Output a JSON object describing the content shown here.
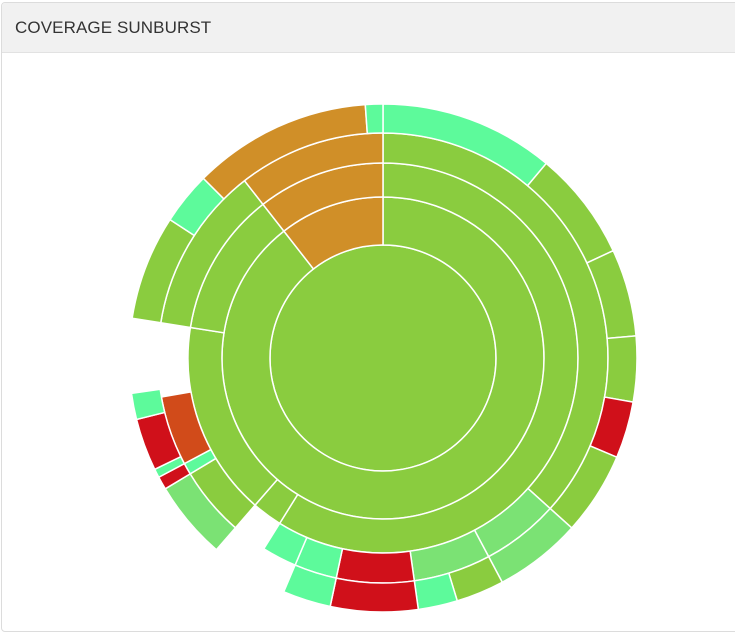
{
  "panel": {
    "title": "COVERAGE SUNBURST"
  },
  "chart_data": {
    "type": "sunburst",
    "color_scale": {
      "high": "#8acc3f",
      "very_high": "#5dfa9b",
      "good": "#7be274",
      "medium": "#d08f28",
      "low": "#d14b1a",
      "very_low": "#d0101a"
    },
    "segments": [
      {
        "level": 0,
        "start_deg": 0,
        "end_deg": 360,
        "color": "high"
      },
      {
        "level": 1,
        "start_deg": 0,
        "end_deg": 322,
        "color": "high"
      },
      {
        "level": 1,
        "start_deg": 322,
        "end_deg": 360,
        "color": "medium"
      },
      {
        "level": 2,
        "start_deg": 0,
        "end_deg": 212,
        "color": "high"
      },
      {
        "level": 2,
        "start_deg": 212,
        "end_deg": 221,
        "color": "high"
      },
      {
        "level": 2,
        "start_deg": 221,
        "end_deg": 279,
        "color": "high"
      },
      {
        "level": 2,
        "start_deg": 279,
        "end_deg": 322,
        "color": "high"
      },
      {
        "level": 2,
        "start_deg": 322,
        "end_deg": 360,
        "color": "medium"
      },
      {
        "level": 3,
        "start_deg": 0,
        "end_deg": 132,
        "color": "high"
      },
      {
        "level": 3,
        "start_deg": 132,
        "end_deg": 152,
        "color": "good"
      },
      {
        "level": 3,
        "start_deg": 152,
        "end_deg": 172,
        "color": "good"
      },
      {
        "level": 3,
        "start_deg": 172,
        "end_deg": 192,
        "color": "very_low"
      },
      {
        "level": 3,
        "start_deg": 192,
        "end_deg": 203,
        "color": "very_high"
      },
      {
        "level": 3,
        "start_deg": 203,
        "end_deg": 212,
        "color": "very_high"
      },
      {
        "level": 3,
        "start_deg": 221,
        "end_deg": 239,
        "color": "high"
      },
      {
        "level": 3,
        "start_deg": 239,
        "end_deg": 242,
        "color": "very_high"
      },
      {
        "level": 3,
        "start_deg": 242,
        "end_deg": 260,
        "color": "low"
      },
      {
        "level": 3,
        "start_deg": 279,
        "end_deg": 322,
        "color": "high"
      },
      {
        "level": 3,
        "start_deg": 322,
        "end_deg": 360,
        "color": "medium"
      },
      {
        "level": 4,
        "start_deg": 0,
        "end_deg": 40,
        "color": "very_high"
      },
      {
        "level": 4,
        "start_deg": 40,
        "end_deg": 65,
        "color": "high"
      },
      {
        "level": 4,
        "start_deg": 65,
        "end_deg": 85,
        "color": "high"
      },
      {
        "level": 4,
        "start_deg": 85,
        "end_deg": 100,
        "color": "high"
      },
      {
        "level": 4,
        "start_deg": 100,
        "end_deg": 113,
        "color": "very_low"
      },
      {
        "level": 4,
        "start_deg": 113,
        "end_deg": 132,
        "color": "high"
      },
      {
        "level": 4,
        "start_deg": 132,
        "end_deg": 152,
        "color": "good"
      },
      {
        "level": 4,
        "start_deg": 152,
        "end_deg": 163,
        "color": "high"
      },
      {
        "level": 4,
        "start_deg": 163,
        "end_deg": 172,
        "color": "very_high"
      },
      {
        "level": 4,
        "start_deg": 172,
        "end_deg": 192,
        "color": "very_low"
      },
      {
        "level": 4,
        "start_deg": 192,
        "end_deg": 203,
        "color": "very_high"
      },
      {
        "level": 4,
        "start_deg": 221,
        "end_deg": 239,
        "color": "good"
      },
      {
        "level": 4,
        "start_deg": 239,
        "end_deg": 242,
        "color": "very_low"
      },
      {
        "level": 4,
        "start_deg": 242,
        "end_deg": 244,
        "color": "very_high"
      },
      {
        "level": 4,
        "start_deg": 244,
        "end_deg": 256,
        "color": "very_low"
      },
      {
        "level": 4,
        "start_deg": 256,
        "end_deg": 262,
        "color": "very_high"
      },
      {
        "level": 4,
        "start_deg": 279,
        "end_deg": 303,
        "color": "high"
      },
      {
        "level": 4,
        "start_deg": 303,
        "end_deg": 315,
        "color": "very_high"
      },
      {
        "level": 4,
        "start_deg": 315,
        "end_deg": 356,
        "color": "medium"
      },
      {
        "level": 4,
        "start_deg": 356,
        "end_deg": 360,
        "color": "very_high"
      }
    ]
  }
}
